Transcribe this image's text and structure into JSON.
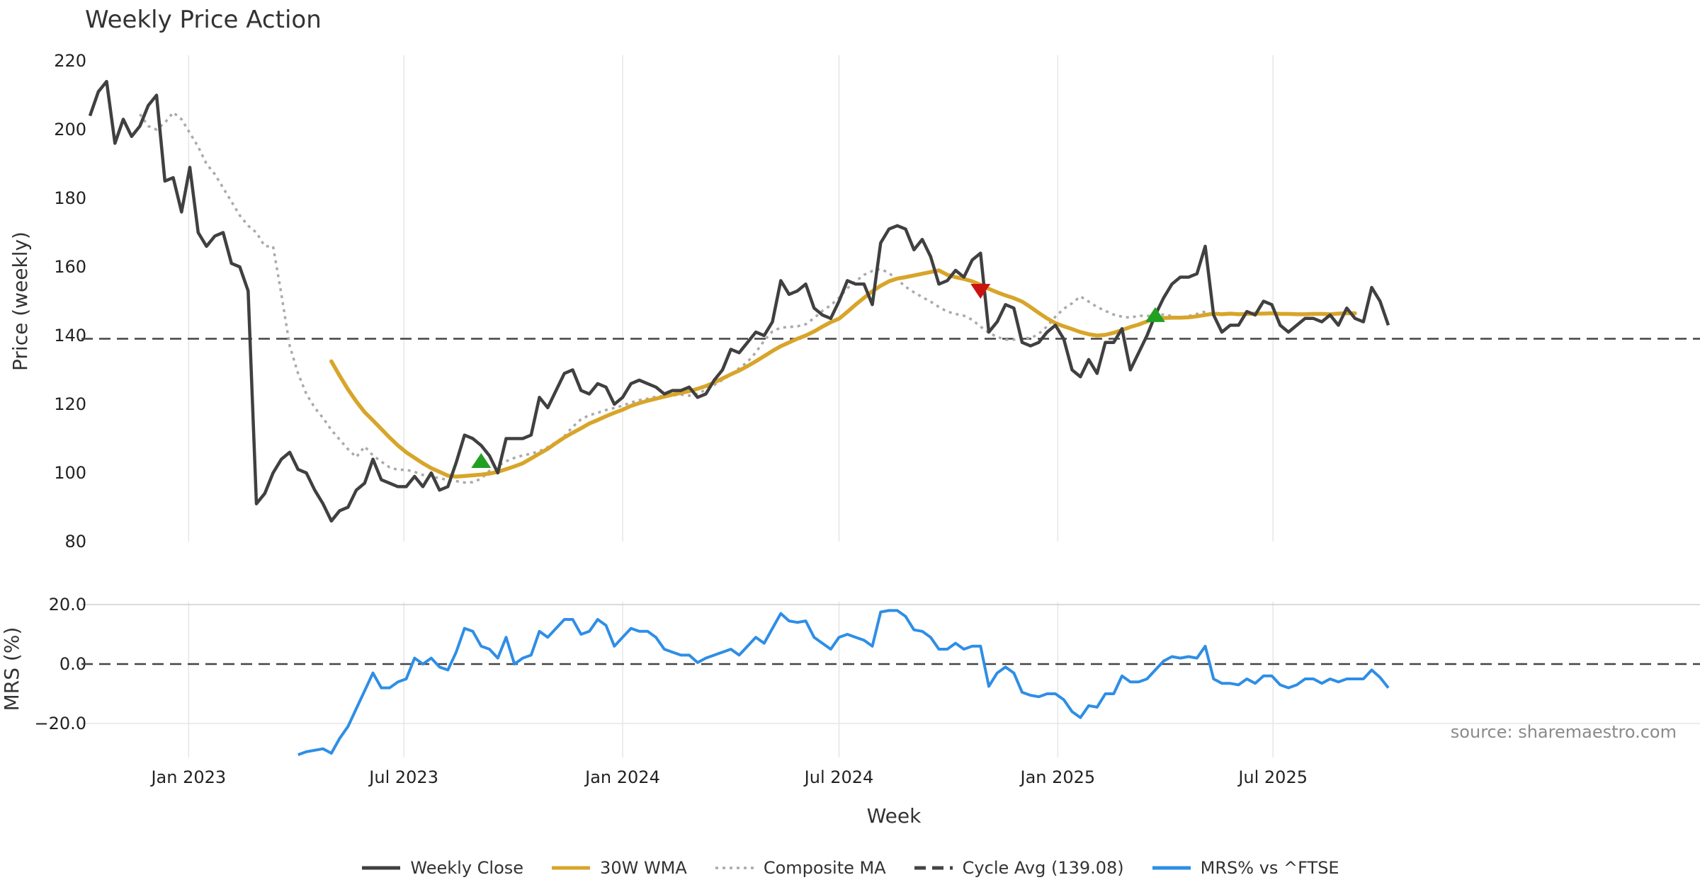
{
  "title": "Weekly Price Action",
  "source": "source: sharemaestro.com",
  "colors": {
    "close": "#404040",
    "wma": "#d8a52a",
    "composite": "#aaaaaa",
    "cycle": "#444444",
    "mrs": "#2e8ee6",
    "buy": "#22a022",
    "sell": "#cc1111",
    "grid": "#e6e6e6"
  },
  "legend": [
    {
      "key": "close",
      "label": "Weekly Close",
      "style": "solid"
    },
    {
      "key": "wma",
      "label": "30W WMA",
      "style": "solid"
    },
    {
      "key": "composite",
      "label": "Composite MA",
      "style": "dotted"
    },
    {
      "key": "cycle",
      "label": "Cycle Avg (139.08)",
      "style": "dashed"
    },
    {
      "key": "mrs",
      "label": "MRS% vs ^FTSE",
      "style": "solid"
    }
  ],
  "chart_data": [
    {
      "type": "line",
      "panel": "price",
      "title": "Weekly Price Action",
      "xlabel": "Week",
      "ylabel": "Price (weekly)",
      "ylim": [
        80,
        220
      ],
      "yticks": [
        "80",
        "100",
        "120",
        "140",
        "160",
        "180",
        "200",
        "220"
      ],
      "xticks": [
        "Jan 2023",
        "Jul 2023",
        "Jan 2024",
        "Jul 2024",
        "Jan 2025",
        "Jul 2025"
      ],
      "x_start": "2022-10-10",
      "x_unit": "weeks since x_start",
      "cycle_avg": 139.08,
      "series": [
        {
          "name": "Weekly Close",
          "values": [
            204,
            211,
            214,
            196,
            203,
            198,
            201,
            207,
            210,
            185,
            186,
            176,
            189,
            170,
            166,
            169,
            170,
            161,
            160,
            153,
            91,
            94,
            100,
            104,
            106,
            101,
            100,
            95,
            91,
            86,
            89,
            90,
            95,
            97,
            104,
            98,
            97,
            96,
            96,
            99,
            96,
            100,
            95,
            96,
            103,
            111,
            110,
            108,
            105,
            100,
            110,
            110,
            110,
            111,
            122,
            119,
            124,
            129,
            130,
            124,
            123,
            126,
            125,
            120,
            122,
            126,
            127,
            126,
            125,
            123,
            124,
            124,
            125,
            122,
            123,
            127,
            130,
            136,
            135,
            138,
            141,
            140,
            144,
            156,
            152,
            153,
            155,
            148,
            146,
            145,
            150,
            156,
            155,
            155,
            149,
            167,
            171,
            172,
            171,
            165,
            168,
            163,
            155,
            156,
            159,
            157,
            162,
            164,
            141,
            144,
            149,
            148,
            138,
            137,
            138,
            141,
            143,
            139,
            130,
            128,
            133,
            129,
            138,
            138,
            142,
            130,
            135,
            140,
            146,
            151,
            155,
            157,
            157,
            158,
            166,
            146,
            141,
            143,
            143,
            147,
            146,
            150,
            149,
            143,
            141,
            143,
            145,
            145,
            144,
            146,
            143,
            148,
            145,
            144,
            154,
            150,
            143
          ]
        },
        {
          "name": "30W WMA",
          "start": 29,
          "values": [
            132.5,
            128.3,
            124.3,
            120.8,
            117.7,
            115.3,
            112.8,
            110.3,
            108,
            106,
            104.4,
            102.8,
            101.4,
            100.3,
            99.2,
            98.9,
            99.1,
            99.3,
            99.5,
            99.8,
            100.3,
            101.1,
            101.9,
            102.8,
            104.2,
            105.6,
            107,
            108.7,
            110.3,
            111.7,
            113,
            114.4,
            115.4,
            116.5,
            117.5,
            118.4,
            119.5,
            120.3,
            121,
            121.6,
            122.2,
            122.8,
            123.3,
            123.8,
            124.5,
            125.3,
            126.3,
            127.5,
            128.7,
            129.8,
            131.1,
            132.5,
            134,
            135.5,
            136.9,
            138,
            139.1,
            140,
            141.2,
            142.6,
            143.9,
            144.9,
            146.9,
            149,
            151,
            152.9,
            154.5,
            155.8,
            156.6,
            157,
            157.5,
            158,
            158.5,
            159,
            157.7,
            157,
            156.5,
            155.8,
            154.8,
            153.6,
            152.6,
            151.7,
            150.9,
            149.9,
            148.3,
            146.6,
            145,
            143.6,
            142.7,
            141.9,
            141,
            140.4,
            140,
            140.2,
            140.8,
            141.6,
            142.5,
            143.2,
            144.1,
            145,
            145.1,
            145.2,
            145.2,
            145.3,
            145.6,
            146,
            146.4,
            146.2,
            146.4,
            146.2,
            146.3,
            146.4,
            146.4,
            146.5,
            146.3,
            146.3,
            146.2,
            146.2,
            146.3,
            146.3,
            146.2,
            146.4,
            146.5,
            146.5
          ]
        },
        {
          "name": "Composite MA",
          "start": 6,
          "values": [
            204.5,
            201,
            200,
            202,
            205,
            203,
            199,
            195,
            190,
            187,
            183,
            179,
            175,
            172,
            170,
            166,
            166,
            152,
            137,
            129,
            123,
            119,
            116,
            112.5,
            109.7,
            106.9,
            104.6,
            107.7,
            105.1,
            103.3,
            101.6,
            100.9,
            100.9,
            100.3,
            99.4,
            98.9,
            98.5,
            97.9,
            97.6,
            97.2,
            97.3,
            98.3,
            100.6,
            102,
            103.4,
            104.4,
            105.1,
            105.6,
            106.3,
            107.5,
            108.9,
            110.7,
            113.4,
            115.6,
            116.8,
            117.5,
            118.3,
            118.9,
            119.6,
            120.5,
            121.2,
            121.6,
            122.2,
            122.4,
            122.6,
            122.8,
            122.5,
            123.1,
            124.2,
            125.6,
            127.1,
            128.6,
            130.5,
            132.3,
            135.1,
            138.5,
            141.2,
            142.3,
            142.5,
            142.7,
            143.3,
            145.1,
            147.2,
            148.8,
            151,
            153.8,
            155.8,
            157.7,
            158.8,
            159.4,
            158.2,
            156.3,
            154.2,
            152.6,
            151.2,
            149.9,
            148.3,
            147,
            146.3,
            145.8,
            144.6,
            142.6,
            140.8,
            139.6,
            138.8,
            138.8,
            139.4,
            139.2,
            140.5,
            142.7,
            145.5,
            147.8,
            149.4,
            151.4,
            149.9,
            148.3,
            147.2,
            146.1,
            145.5,
            145.2,
            145.8,
            145.7,
            145.9,
            146.1,
            145.7,
            145.1,
            145.7,
            146.3,
            147
          ]
        }
      ],
      "markers": [
        {
          "type": "buy",
          "week": 47,
          "value": 103.5
        },
        {
          "type": "sell",
          "week": 107,
          "value": 153
        },
        {
          "type": "buy",
          "week": 128,
          "value": 146
        }
      ]
    },
    {
      "type": "line",
      "panel": "mrs",
      "ylabel": "MRS (%)",
      "ylim": [
        -30,
        22
      ],
      "yticks": [
        "−20.0",
        "0.0",
        "20.0"
      ],
      "series": [
        {
          "name": "MRS% vs ^FTSE",
          "start": 25,
          "values": [
            -30.5,
            -29.5,
            -29,
            -28.5,
            -30,
            -25,
            -21,
            -15,
            -9,
            -3,
            -8,
            -8,
            -6,
            -5,
            2,
            0,
            2,
            -1,
            -2,
            4,
            12,
            11,
            6,
            5,
            2,
            9,
            0,
            2,
            3,
            11,
            9,
            12,
            15,
            15,
            10,
            11,
            15,
            13,
            6,
            9,
            12,
            11,
            11,
            9,
            5,
            4,
            3,
            3,
            0.5,
            2,
            3,
            4,
            5,
            3,
            6,
            9,
            7,
            12,
            17,
            14.5,
            14,
            14.5,
            9,
            7,
            5,
            9,
            10,
            9,
            8,
            6,
            17.5,
            18,
            18,
            16,
            11.5,
            11,
            9,
            5,
            5,
            7,
            5,
            6,
            6,
            -7.5,
            -3,
            -1,
            -3,
            -9.5,
            -10.5,
            -11,
            -10,
            -10,
            -12,
            -16,
            -18,
            -14,
            -14.5,
            -10,
            -10,
            -4,
            -6,
            -6,
            -5,
            -2,
            1,
            2.5,
            2,
            2.5,
            2,
            6,
            -5,
            -6.5,
            -6.5,
            -7,
            -5,
            -6.5,
            -4,
            -4,
            -7,
            -8,
            -7,
            -5,
            -5,
            -6.5,
            -5,
            -6,
            -5,
            -5,
            -5,
            -2,
            -4.5,
            -8
          ]
        }
      ]
    }
  ]
}
